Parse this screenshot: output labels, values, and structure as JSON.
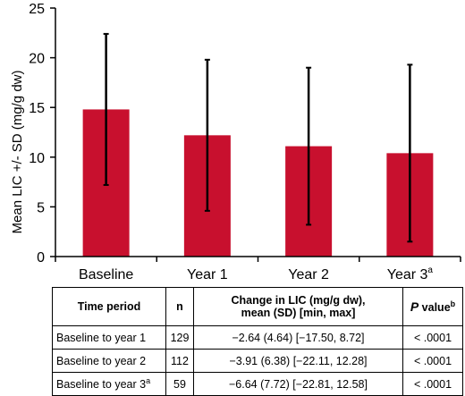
{
  "chart_data": {
    "type": "bar",
    "ylabel": "Mean LIC +/- SD (mg/g dw)",
    "xlabel": "",
    "ylim": [
      0,
      25
    ],
    "yticks": [
      "0",
      "5",
      "10",
      "15",
      "20",
      "25"
    ],
    "categories": [
      "Baseline",
      "Year 1",
      "Year 2",
      "Year 3"
    ],
    "category_superscripts": [
      "",
      "",
      "",
      "a"
    ],
    "values": [
      14.8,
      12.2,
      11.1,
      10.4
    ],
    "error_sd": [
      7.6,
      7.6,
      7.9,
      8.9
    ],
    "bar_color": "#c8102e",
    "error_bar_color": "#000000",
    "grid": false
  },
  "table": {
    "headers": {
      "period": "Time period",
      "n": "n",
      "change_line1": "Change in LIC (mg/g dw),",
      "change_line2": "mean (SD) [min, max]",
      "p": "P",
      "p_rest": " value",
      "p_sup": "b"
    },
    "rows": [
      {
        "period": "Baseline to year 1",
        "period_sup": "",
        "n": "129",
        "change": "−2.64 (4.64) [−17.50, 8.72]",
        "p": "< .0001"
      },
      {
        "period": "Baseline to year 2",
        "period_sup": "",
        "n": "112",
        "change": "−3.91 (6.38) [−22.11, 12.28]",
        "p": "< .0001"
      },
      {
        "period": "Baseline to year 3",
        "period_sup": "a",
        "n": "59",
        "change": "−6.64 (7.72) [−22.81, 12.58]",
        "p": "< .0001"
      }
    ]
  }
}
